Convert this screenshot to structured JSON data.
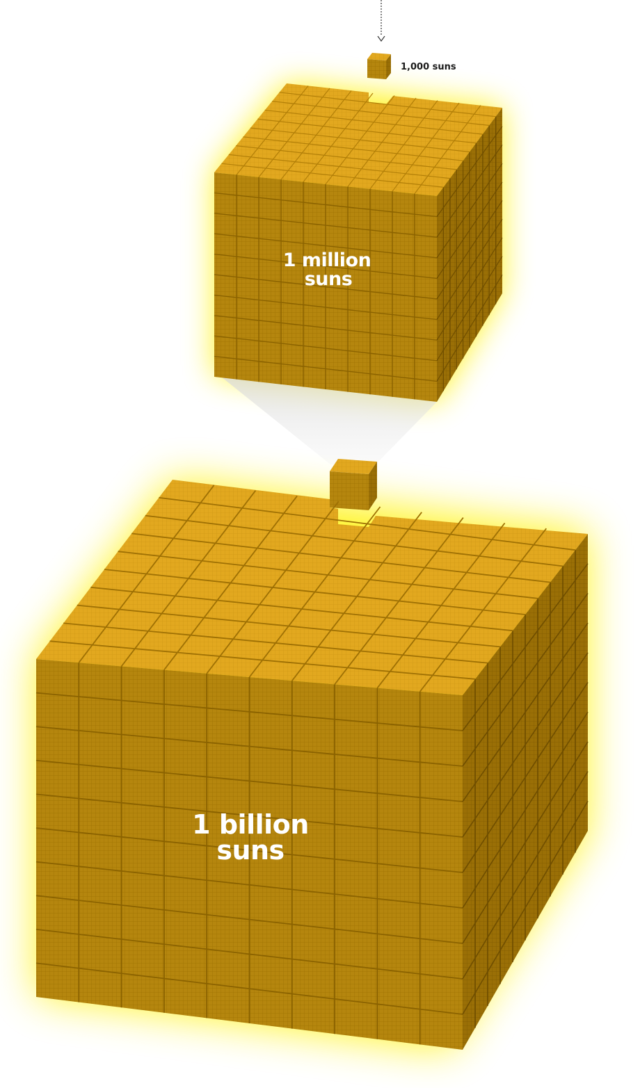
{
  "labels": {
    "small": "1,000 suns",
    "medium_line1": "1 million",
    "medium_line2": "suns",
    "large_line1": "1 billion",
    "large_line2": "suns"
  },
  "colors": {
    "top": "#E5AB20",
    "front": "#B5860E",
    "side": "#9A6F06",
    "grid_line": "#8A6200",
    "glow": "#FFF200",
    "text_small": "#1a1a1a",
    "text_cube": "#ffffff"
  },
  "icons": {
    "pointer": "dotted-arrow-down-icon"
  }
}
